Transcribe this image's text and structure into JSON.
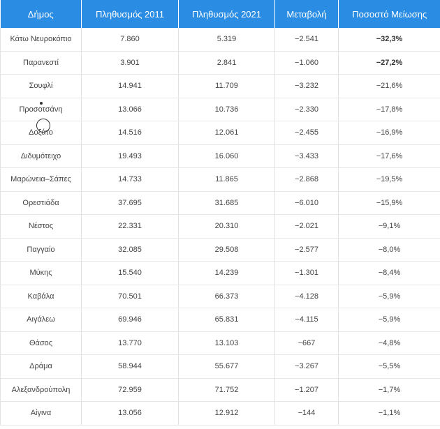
{
  "table": {
    "headers": [
      "Δήμος",
      "Πληθυσμός 2011",
      "Πληθυσμός 2021",
      "Μεταβολή",
      "Ποσοστό Μείωσης"
    ],
    "rows": [
      {
        "municipality": "Κάτω Νευροκόπιο",
        "pop2011": "7.860",
        "pop2021": "5.319",
        "change": "−2.541",
        "percent": "−32,3%",
        "percent_bold": true
      },
      {
        "municipality": "Παρανεστί",
        "pop2011": "3.901",
        "pop2021": "2.841",
        "change": "−1.060",
        "percent": "−27,2%",
        "percent_bold": true
      },
      {
        "municipality": "Σουφλί",
        "pop2011": "14.941",
        "pop2021": "11.709",
        "change": "−3.232",
        "percent": "−21,6%",
        "percent_bold": false
      },
      {
        "municipality": "Προσοτσάνη",
        "pop2011": "13.066",
        "pop2021": "10.736",
        "change": "−2.330",
        "percent": "−17,8%",
        "percent_bold": false
      },
      {
        "municipality": "Δοξάτο",
        "pop2011": "14.516",
        "pop2021": "12.061",
        "change": "−2.455",
        "percent": "−16,9%",
        "percent_bold": false
      },
      {
        "municipality": "Διδυμότειχο",
        "pop2011": "19.493",
        "pop2021": "16.060",
        "change": "−3.433",
        "percent": "−17,6%",
        "percent_bold": false
      },
      {
        "municipality": "Μαρώνεια–Σάπες",
        "pop2011": "14.733",
        "pop2021": "11.865",
        "change": "−2.868",
        "percent": "−19,5%",
        "percent_bold": false
      },
      {
        "municipality": "Ορεστιάδα",
        "pop2011": "37.695",
        "pop2021": "31.685",
        "change": "−6.010",
        "percent": "−15,9%",
        "percent_bold": false
      },
      {
        "municipality": "Νέστος",
        "pop2011": "22.331",
        "pop2021": "20.310",
        "change": "−2.021",
        "percent": "−9,1%",
        "percent_bold": false
      },
      {
        "municipality": "Παγγαίο",
        "pop2011": "32.085",
        "pop2021": "29.508",
        "change": "−2.577",
        "percent": "−8,0%",
        "percent_bold": false
      },
      {
        "municipality": "Μύκης",
        "pop2011": "15.540",
        "pop2021": "14.239",
        "change": "−1.301",
        "percent": "−8,4%",
        "percent_bold": false
      },
      {
        "municipality": "Καβάλα",
        "pop2011": "70.501",
        "pop2021": "66.373",
        "change": "−4.128",
        "percent": "−5,9%",
        "percent_bold": false
      },
      {
        "municipality": "Αιγάλεω",
        "pop2011": "69.946",
        "pop2021": "65.831",
        "change": "−4.115",
        "percent": "−5,9%",
        "percent_bold": false
      },
      {
        "municipality": "Θάσος",
        "pop2011": "13.770",
        "pop2021": "13.103",
        "change": "−667",
        "percent": "−4,8%",
        "percent_bold": false
      },
      {
        "municipality": "Δράμα",
        "pop2011": "58.944",
        "pop2021": "55.677",
        "change": "−3.267",
        "percent": "−5,5%",
        "percent_bold": false
      },
      {
        "municipality": "Αλεξανδρούπολη",
        "pop2011": "72.959",
        "pop2021": "71.752",
        "change": "−1.207",
        "percent": "−1,7%",
        "percent_bold": false
      },
      {
        "municipality": "Αίγινα",
        "pop2011": "13.056",
        "pop2021": "12.912",
        "change": "−144",
        "percent": "−1,1%",
        "percent_bold": false
      }
    ]
  },
  "colors": {
    "header_bg": "#2a8de3",
    "header_text": "#ffffff",
    "cell_text": "#444444"
  }
}
